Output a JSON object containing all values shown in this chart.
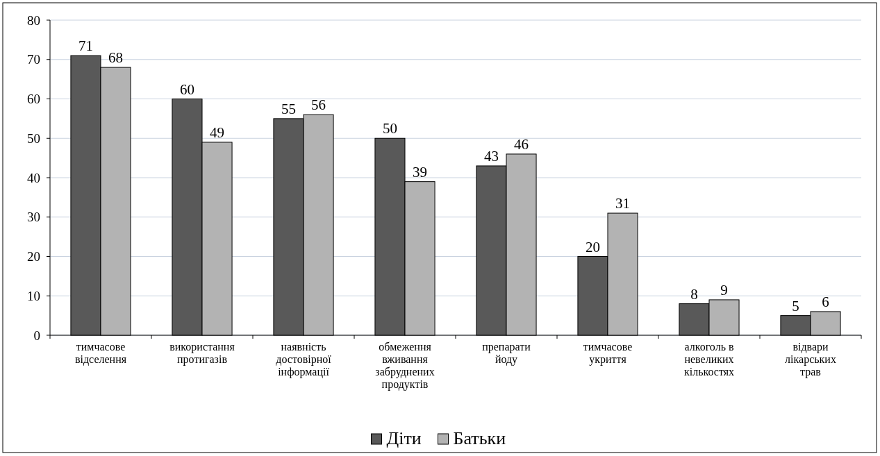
{
  "chart_data": {
    "type": "bar",
    "categories": [
      "тимчасове\nвідселення",
      "використання\nпротигазів",
      "наявність\nдостовірної\nінформації",
      "обмеження\nвживання\nзабруднених\nпродуктів",
      "препарати\nйоду",
      "тимчасове\nукриття",
      "алкоголь в\nневеликих\nкількостях",
      "відвари\nлікарських\nтрав"
    ],
    "series": [
      {
        "name": "Діти",
        "color": "#595959",
        "values": [
          71,
          60,
          55,
          50,
          43,
          20,
          8,
          5
        ]
      },
      {
        "name": "Батьки",
        "color": "#b3b3b3",
        "values": [
          68,
          49,
          56,
          39,
          46,
          31,
          9,
          6
        ]
      }
    ],
    "ylim": [
      0,
      80
    ],
    "yticks": [
      0,
      10,
      20,
      30,
      40,
      50,
      60,
      70,
      80
    ],
    "grid": "y",
    "legend": "bottom",
    "data_labels": true
  }
}
